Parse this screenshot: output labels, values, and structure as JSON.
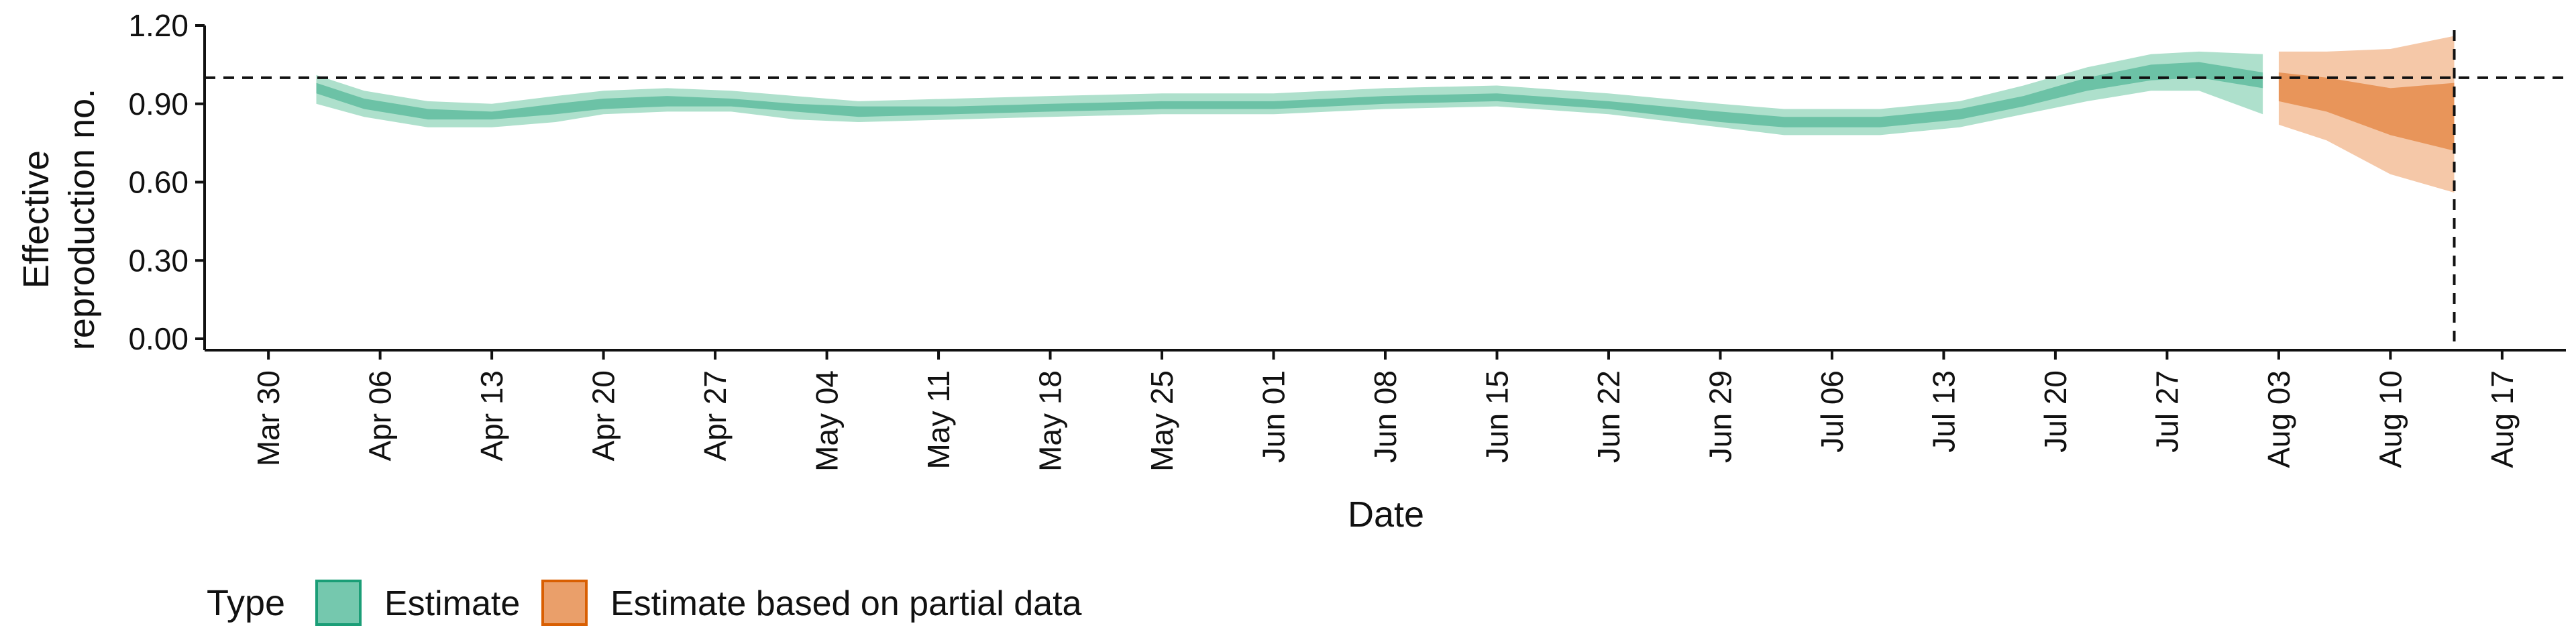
{
  "chart_data": {
    "type": "area",
    "xlabel": "Date",
    "ylabel": [
      "Effective",
      "reproduction no."
    ],
    "ylim": [
      0,
      1.2
    ],
    "xlim": [
      "2020-03-26",
      "2020-08-21"
    ],
    "x_ticks": [
      "2020-03-30",
      "2020-04-06",
      "2020-04-13",
      "2020-04-20",
      "2020-04-27",
      "2020-05-04",
      "2020-05-11",
      "2020-05-18",
      "2020-05-25",
      "2020-06-01",
      "2020-06-08",
      "2020-06-15",
      "2020-06-22",
      "2020-06-29",
      "2020-07-06",
      "2020-07-13",
      "2020-07-20",
      "2020-07-27",
      "2020-08-03",
      "2020-08-10",
      "2020-08-17"
    ],
    "x_tick_labels": [
      "Mar 30",
      "Apr 06",
      "Apr 13",
      "Apr 20",
      "Apr 27",
      "May 04",
      "May 11",
      "May 18",
      "May 25",
      "Jun 01",
      "Jun 08",
      "Jun 15",
      "Jun 22",
      "Jun 29",
      "Jul 06",
      "Jul 13",
      "Jul 20",
      "Jul 27",
      "Aug 03",
      "Aug 10",
      "Aug 17"
    ],
    "y_ticks": [
      0,
      0.3,
      0.6,
      0.9,
      1.2
    ],
    "y_tick_labels": [
      "0.00",
      "0.30",
      "0.60",
      "0.90",
      "1.20"
    ],
    "hline": 1.0,
    "vline": "2020-08-14",
    "grid": false,
    "legend": {
      "title": "Type",
      "placement": "bottom-left",
      "entries": [
        "Estimate",
        "Estimate based on partial data"
      ]
    },
    "series": [
      {
        "name": "Estimate",
        "color": "#1b9e77",
        "points": [
          {
            "x": "2020-04-02",
            "lo90": 0.9,
            "lo50": 0.94,
            "hi50": 0.98,
            "hi90": 1.01
          },
          {
            "x": "2020-04-05",
            "lo90": 0.85,
            "lo50": 0.88,
            "hi50": 0.92,
            "hi90": 0.95
          },
          {
            "x": "2020-04-09",
            "lo90": 0.81,
            "lo50": 0.84,
            "hi50": 0.88,
            "hi90": 0.91
          },
          {
            "x": "2020-04-13",
            "lo90": 0.81,
            "lo50": 0.84,
            "hi50": 0.87,
            "hi90": 0.9
          },
          {
            "x": "2020-04-17",
            "lo90": 0.83,
            "lo50": 0.86,
            "hi50": 0.9,
            "hi90": 0.93
          },
          {
            "x": "2020-04-20",
            "lo90": 0.86,
            "lo50": 0.88,
            "hi50": 0.92,
            "hi90": 0.95
          },
          {
            "x": "2020-04-24",
            "lo90": 0.87,
            "lo50": 0.89,
            "hi50": 0.93,
            "hi90": 0.96
          },
          {
            "x": "2020-04-28",
            "lo90": 0.87,
            "lo50": 0.89,
            "hi50": 0.92,
            "hi90": 0.95
          },
          {
            "x": "2020-05-02",
            "lo90": 0.84,
            "lo50": 0.87,
            "hi50": 0.9,
            "hi90": 0.93
          },
          {
            "x": "2020-05-06",
            "lo90": 0.83,
            "lo50": 0.85,
            "hi50": 0.89,
            "hi90": 0.91
          },
          {
            "x": "2020-05-12",
            "lo90": 0.84,
            "lo50": 0.86,
            "hi50": 0.89,
            "hi90": 0.92
          },
          {
            "x": "2020-05-18",
            "lo90": 0.85,
            "lo50": 0.87,
            "hi50": 0.9,
            "hi90": 0.93
          },
          {
            "x": "2020-05-25",
            "lo90": 0.86,
            "lo50": 0.88,
            "hi50": 0.91,
            "hi90": 0.94
          },
          {
            "x": "2020-06-01",
            "lo90": 0.86,
            "lo50": 0.88,
            "hi50": 0.91,
            "hi90": 0.94
          },
          {
            "x": "2020-06-08",
            "lo90": 0.88,
            "lo50": 0.9,
            "hi50": 0.93,
            "hi90": 0.96
          },
          {
            "x": "2020-06-15",
            "lo90": 0.89,
            "lo50": 0.91,
            "hi50": 0.94,
            "hi90": 0.97
          },
          {
            "x": "2020-06-22",
            "lo90": 0.86,
            "lo50": 0.88,
            "hi50": 0.91,
            "hi90": 0.94
          },
          {
            "x": "2020-06-29",
            "lo90": 0.81,
            "lo50": 0.83,
            "hi50": 0.87,
            "hi90": 0.9
          },
          {
            "x": "2020-07-03",
            "lo90": 0.78,
            "lo50": 0.81,
            "hi50": 0.85,
            "hi90": 0.88
          },
          {
            "x": "2020-07-09",
            "lo90": 0.78,
            "lo50": 0.81,
            "hi50": 0.85,
            "hi90": 0.88
          },
          {
            "x": "2020-07-14",
            "lo90": 0.81,
            "lo50": 0.84,
            "hi50": 0.88,
            "hi90": 0.91
          },
          {
            "x": "2020-07-18",
            "lo90": 0.86,
            "lo50": 0.89,
            "hi50": 0.93,
            "hi90": 0.97
          },
          {
            "x": "2020-07-22",
            "lo90": 0.91,
            "lo50": 0.95,
            "hi50": 1.0,
            "hi90": 1.04
          },
          {
            "x": "2020-07-26",
            "lo90": 0.95,
            "lo50": 0.99,
            "hi50": 1.05,
            "hi90": 1.09
          },
          {
            "x": "2020-07-29",
            "lo90": 0.95,
            "lo50": 1.0,
            "hi50": 1.06,
            "hi90": 1.1
          },
          {
            "x": "2020-08-02",
            "lo90": 0.86,
            "lo50": 0.96,
            "hi50": 1.02,
            "hi90": 1.09
          }
        ]
      },
      {
        "name": "Estimate based on partial data",
        "color": "#d95f02",
        "points": [
          {
            "x": "2020-08-03",
            "lo90": 0.82,
            "lo50": 0.91,
            "hi50": 1.02,
            "hi90": 1.1
          },
          {
            "x": "2020-08-06",
            "lo90": 0.76,
            "lo50": 0.87,
            "hi50": 1.0,
            "hi90": 1.1
          },
          {
            "x": "2020-08-10",
            "lo90": 0.63,
            "lo50": 0.78,
            "hi50": 0.96,
            "hi90": 1.11
          },
          {
            "x": "2020-08-14",
            "lo90": 0.56,
            "lo50": 0.72,
            "hi50": 0.98,
            "hi90": 1.16
          }
        ]
      }
    ]
  }
}
